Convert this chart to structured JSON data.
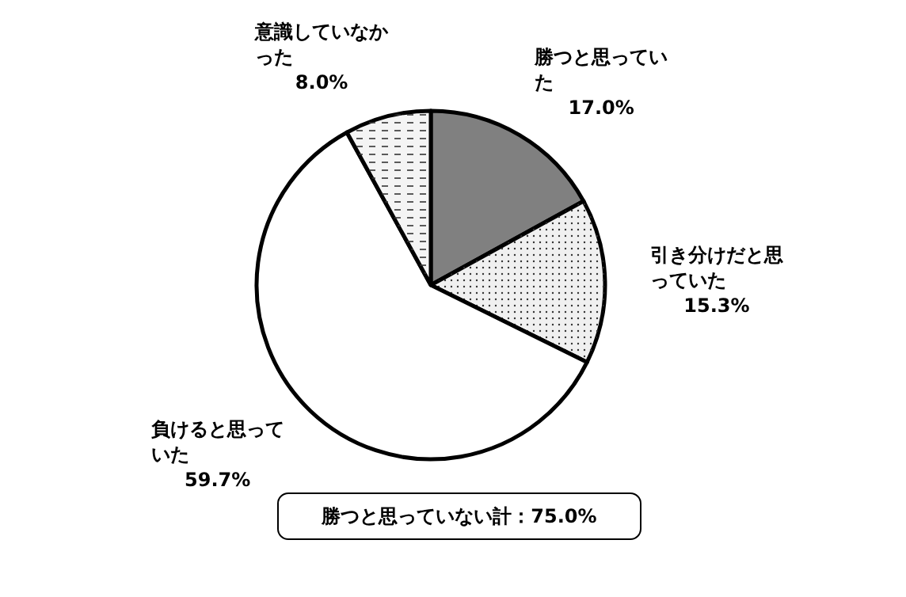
{
  "chart_data": {
    "type": "pie",
    "categories": [
      "勝つと思っていた",
      "引き分けだと思っていた",
      "負けると思っていた",
      "意識していなかった"
    ],
    "values": [
      17.0,
      15.3,
      59.7,
      8.0
    ],
    "colors": [
      "#808080",
      "#f0f0f0",
      "#ffffff",
      "#f4f4f4"
    ],
    "value_labels": [
      "17.0%",
      "15.3%",
      "59.7%",
      "8.0%"
    ],
    "annotations": [
      "勝つと思っていない計：75.0%"
    ]
  }
}
